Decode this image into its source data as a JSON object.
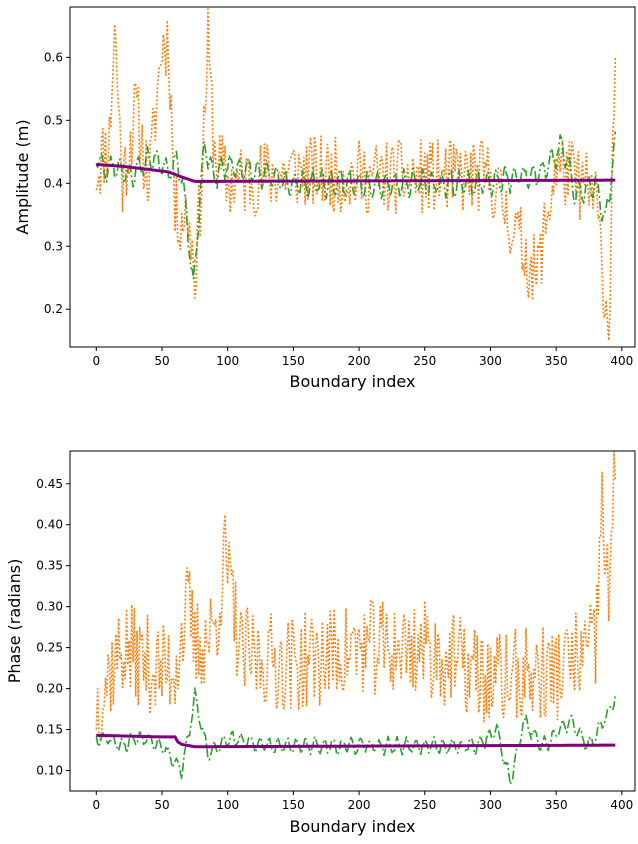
{
  "chart_data": [
    {
      "type": "line",
      "title": "",
      "xlabel": "Boundary index",
      "ylabel": "Amplitude (m)",
      "xlim": [
        -20,
        410
      ],
      "ylim": [
        0.14,
        0.68
      ],
      "xticks": [
        0,
        50,
        100,
        150,
        200,
        250,
        300,
        350,
        400
      ],
      "yticks": [
        0.2,
        0.3,
        0.4,
        0.5,
        0.6
      ],
      "ytick_labels": [
        "0.2",
        "0.3",
        "0.4",
        "0.5",
        "0.6"
      ],
      "grid": false,
      "legend": "none",
      "series": [
        {
          "color": "#ff7f0e",
          "style": "dotted",
          "seed": 11,
          "x": [
            0,
            10,
            14,
            20,
            30,
            40,
            50,
            55,
            60,
            70,
            75,
            80,
            85,
            90,
            100,
            150,
            200,
            250,
            300,
            335,
            350,
            380,
            390,
            395
          ],
          "y": [
            0.42,
            0.47,
            0.65,
            0.4,
            0.52,
            0.4,
            0.62,
            0.63,
            0.35,
            0.35,
            0.26,
            0.4,
            0.62,
            0.45,
            0.4,
            0.42,
            0.41,
            0.41,
            0.41,
            0.25,
            0.43,
            0.38,
            0.16,
            0.63
          ],
          "noise": 0.06
        },
        {
          "color": "#2ca02c",
          "style": "dashdot",
          "seed": 23,
          "x": [
            0,
            5,
            15,
            25,
            35,
            45,
            55,
            62,
            68,
            72,
            74,
            78,
            82,
            90,
            100,
            150,
            200,
            250,
            300,
            340,
            355,
            365,
            380,
            388,
            395
          ],
          "y": [
            0.45,
            0.42,
            0.43,
            0.41,
            0.43,
            0.44,
            0.42,
            0.44,
            0.37,
            0.27,
            0.23,
            0.35,
            0.46,
            0.41,
            0.43,
            0.4,
            0.4,
            0.4,
            0.4,
            0.42,
            0.46,
            0.38,
            0.4,
            0.34,
            0.47
          ],
          "noise": 0.025
        },
        {
          "color": "#800080",
          "style": "solid",
          "x": [
            0,
            20,
            40,
            55,
            65,
            75,
            395
          ],
          "y": [
            0.43,
            0.427,
            0.422,
            0.418,
            0.41,
            0.403,
            0.405
          ],
          "noise": 0
        }
      ]
    },
    {
      "type": "line",
      "title": "",
      "xlabel": "Boundary index",
      "ylabel": "Phase (radians)",
      "xlim": [
        -20,
        410
      ],
      "ylim": [
        0.075,
        0.49
      ],
      "xticks": [
        0,
        50,
        100,
        150,
        200,
        250,
        300,
        350,
        400
      ],
      "yticks": [
        0.1,
        0.15,
        0.2,
        0.25,
        0.3,
        0.35,
        0.4,
        0.45
      ],
      "ytick_labels": [
        "0.10",
        "0.15",
        "0.20",
        "0.25",
        "0.30",
        "0.35",
        "0.40",
        "0.45"
      ],
      "grid": false,
      "legend": "none",
      "series": [
        {
          "color": "#ff7f0e",
          "style": "dotted",
          "seed": 37,
          "x": [
            0,
            10,
            20,
            30,
            40,
            50,
            60,
            70,
            75,
            90,
            98,
            110,
            150,
            200,
            250,
            300,
            350,
            380,
            385,
            390,
            395
          ],
          "y": [
            0.18,
            0.22,
            0.25,
            0.24,
            0.23,
            0.22,
            0.23,
            0.3,
            0.25,
            0.27,
            0.36,
            0.24,
            0.23,
            0.25,
            0.25,
            0.21,
            0.22,
            0.25,
            0.43,
            0.3,
            0.47
          ],
          "noise": 0.06
        },
        {
          "color": "#2ca02c",
          "style": "dashdot",
          "seed": 53,
          "x": [
            0,
            10,
            20,
            30,
            40,
            50,
            60,
            65,
            70,
            75,
            85,
            100,
            130,
            160,
            200,
            250,
            290,
            305,
            315,
            325,
            340,
            360,
            375,
            390,
            395
          ],
          "y": [
            0.14,
            0.14,
            0.13,
            0.14,
            0.14,
            0.13,
            0.11,
            0.1,
            0.14,
            0.19,
            0.12,
            0.14,
            0.13,
            0.13,
            0.13,
            0.13,
            0.13,
            0.15,
            0.085,
            0.16,
            0.13,
            0.16,
            0.13,
            0.17,
            0.19
          ],
          "noise": 0.012
        },
        {
          "color": "#800080",
          "style": "solid",
          "x": [
            0,
            50,
            60,
            62,
            65,
            75,
            395
          ],
          "y": [
            0.143,
            0.141,
            0.141,
            0.135,
            0.132,
            0.129,
            0.131
          ],
          "noise": 0
        }
      ]
    }
  ]
}
